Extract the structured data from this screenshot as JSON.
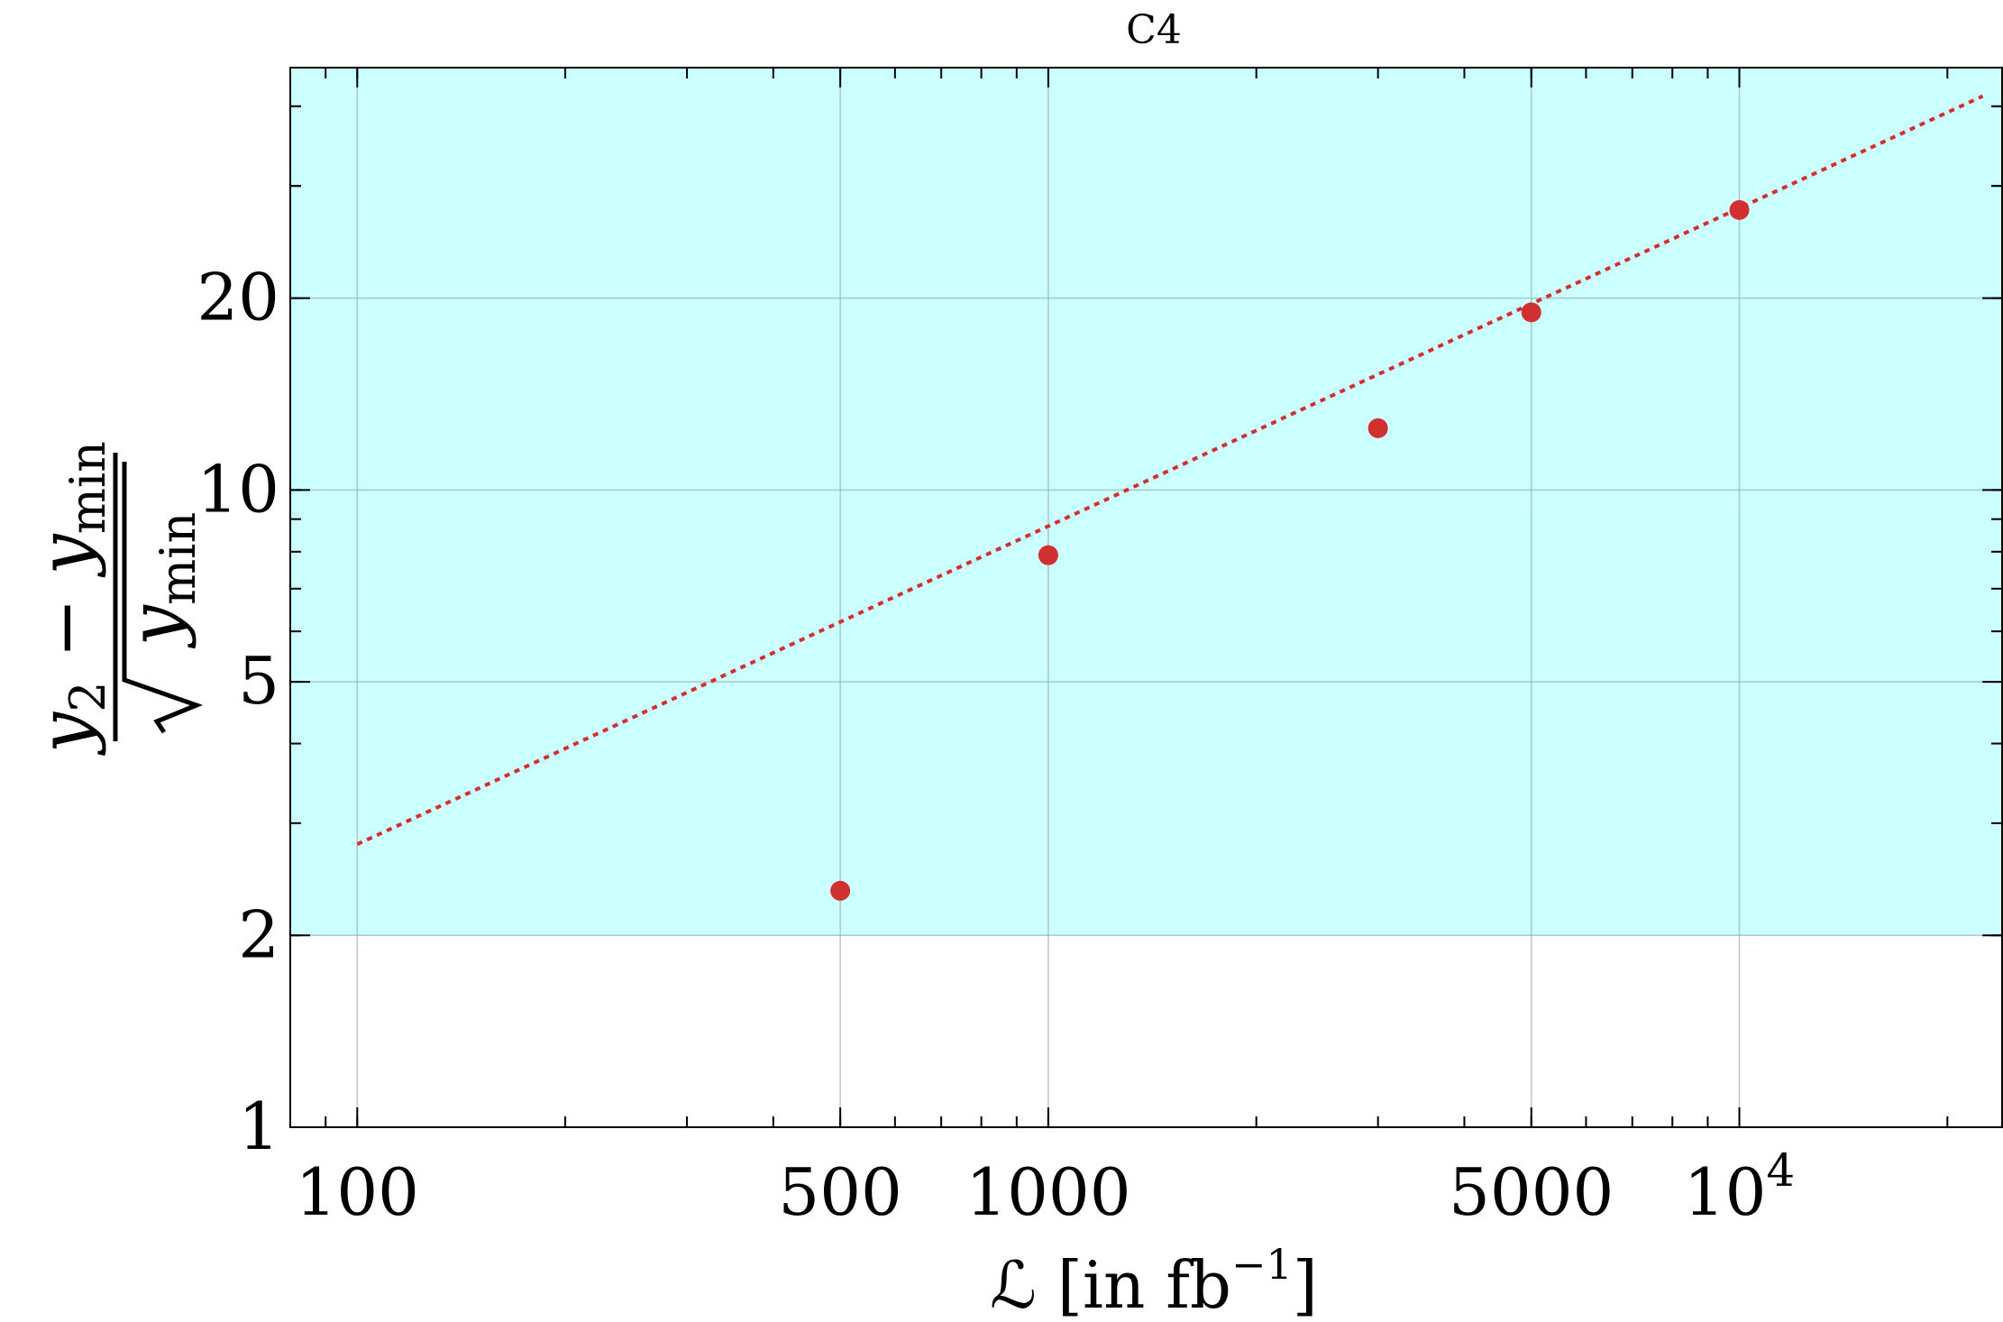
{
  "chart_data": {
    "type": "scatter",
    "title": "C4",
    "xlabel": {
      "prefix": "ℒ [in fb",
      "sup": "−1",
      "suffix": "]"
    },
    "ylabel": {
      "numerator_var": "y",
      "numerator_sub": "2",
      "numerator_minus": "−",
      "numerator_var2": "y",
      "numerator_sub2": "min",
      "denominator_var": "y",
      "denominator_sub": "min"
    },
    "x_scale": "log",
    "y_scale": "log",
    "xlim": [
      80,
      24000
    ],
    "ylim": [
      1,
      46
    ],
    "x_ticks": [
      {
        "value": 100,
        "label": "100"
      },
      {
        "value": 500,
        "label": "500"
      },
      {
        "value": 1000,
        "label": "1000"
      },
      {
        "value": 5000,
        "label": "5000"
      },
      {
        "value": 10000,
        "label": "10",
        "sup": "4"
      }
    ],
    "y_ticks": [
      {
        "value": 1,
        "label": "1"
      },
      {
        "value": 2,
        "label": "2"
      },
      {
        "value": 5,
        "label": "5"
      },
      {
        "value": 10,
        "label": "10"
      },
      {
        "value": 20,
        "label": "20"
      }
    ],
    "grid": true,
    "shaded_region": {
      "y_min": 2,
      "color": "#ccffff"
    },
    "series": [
      {
        "type": "scatter",
        "color": "#d03030",
        "points": [
          {
            "x": 500,
            "y": 2.35
          },
          {
            "x": 1000,
            "y": 7.9
          },
          {
            "x": 3000,
            "y": 12.5
          },
          {
            "x": 5000,
            "y": 19.0
          },
          {
            "x": 10000,
            "y": 27.5
          }
        ]
      },
      {
        "type": "line",
        "style": "dotted",
        "color": "#d03030",
        "points": [
          {
            "x": 100,
            "y": 2.78
          },
          {
            "x": 22500,
            "y": 41.5
          }
        ]
      }
    ]
  }
}
